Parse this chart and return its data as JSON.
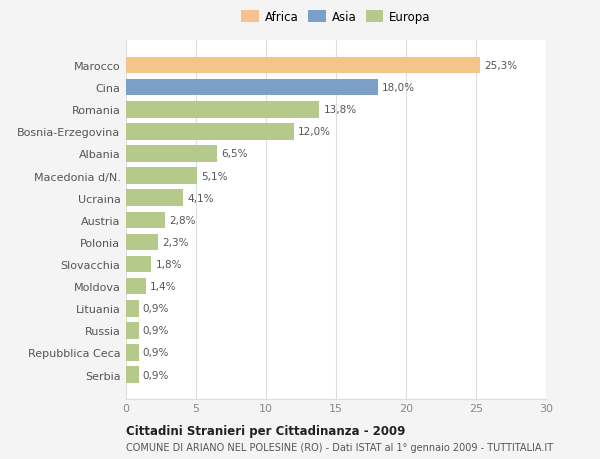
{
  "categories": [
    "Serbia",
    "Repubblica Ceca",
    "Russia",
    "Lituania",
    "Moldova",
    "Slovacchia",
    "Polonia",
    "Austria",
    "Ucraina",
    "Macedonia d/N.",
    "Albania",
    "Bosnia-Erzegovina",
    "Romania",
    "Cina",
    "Marocco"
  ],
  "values": [
    0.9,
    0.9,
    0.9,
    0.9,
    1.4,
    1.8,
    2.3,
    2.8,
    4.1,
    5.1,
    6.5,
    12.0,
    13.8,
    18.0,
    25.3
  ],
  "colors": [
    "#b5c98a",
    "#b5c98a",
    "#b5c98a",
    "#b5c98a",
    "#b5c98a",
    "#b5c98a",
    "#b5c98a",
    "#b5c98a",
    "#b5c98a",
    "#b5c98a",
    "#b5c98a",
    "#b5c98a",
    "#b5c98a",
    "#7b9fc7",
    "#f5c48a"
  ],
  "labels": [
    "0,9%",
    "0,9%",
    "0,9%",
    "0,9%",
    "1,4%",
    "1,8%",
    "2,3%",
    "2,8%",
    "4,1%",
    "5,1%",
    "6,5%",
    "12,0%",
    "13,8%",
    "18,0%",
    "25,3%"
  ],
  "legend": [
    {
      "label": "Africa",
      "color": "#f5c48a"
    },
    {
      "label": "Asia",
      "color": "#7b9fc7"
    },
    {
      "label": "Europa",
      "color": "#b5c98a"
    }
  ],
  "xlim": [
    0,
    30
  ],
  "xticks": [
    0,
    5,
    10,
    15,
    20,
    25,
    30
  ],
  "title1": "Cittadini Stranieri per Cittadinanza - 2009",
  "title2": "COMUNE DI ARIANO NEL POLESINE (RO) - Dati ISTAT al 1° gennaio 2009 - TUTTITALIA.IT",
  "background_color": "#f4f4f4",
  "plot_bg_color": "#ffffff",
  "grid_color": "#dddddd",
  "label_color": "#555555",
  "tick_color": "#888888"
}
